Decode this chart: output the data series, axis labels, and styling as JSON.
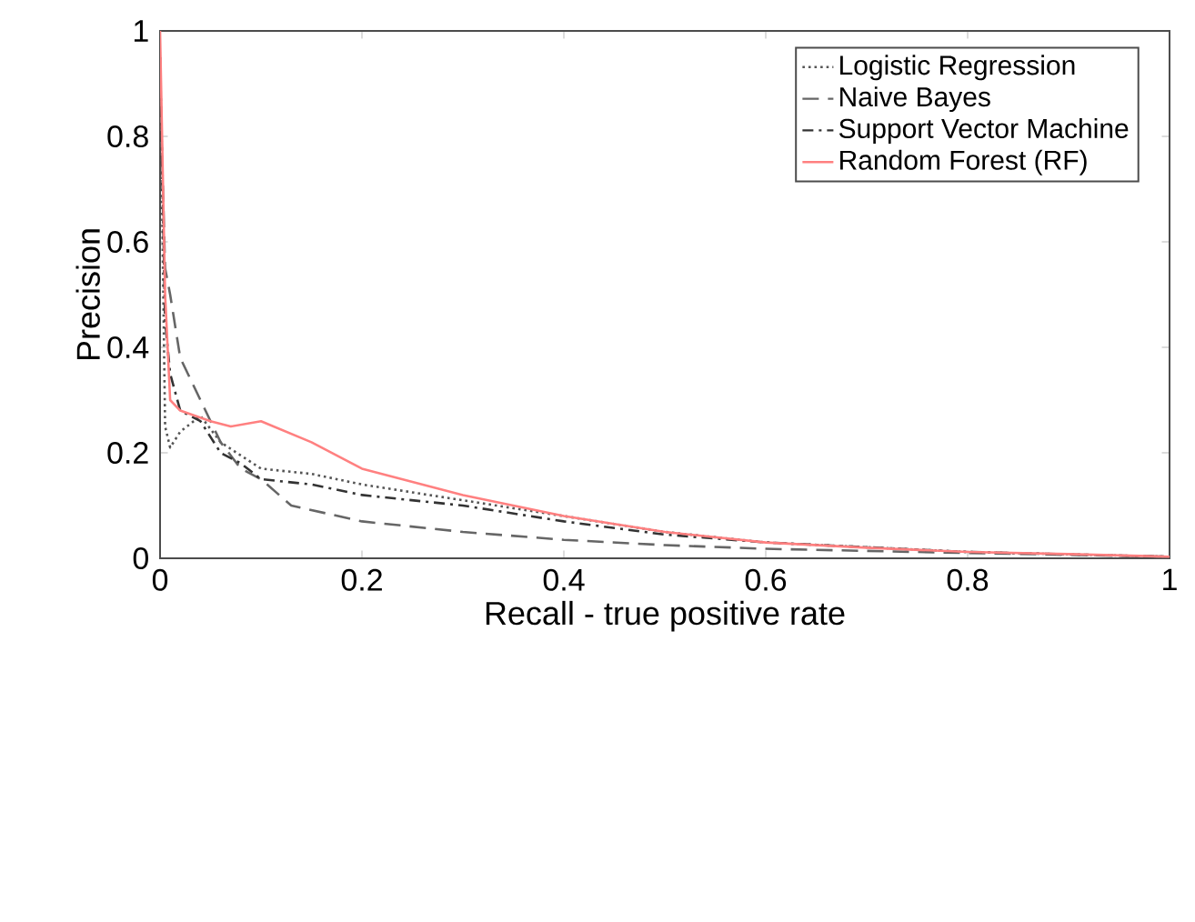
{
  "chart_data": {
    "type": "line",
    "xlabel": "Recall - true positive rate",
    "ylabel": "Precision",
    "xlim": [
      0,
      1
    ],
    "ylim": [
      0,
      1
    ],
    "xticks": [
      0,
      0.2,
      0.4,
      0.6,
      0.8,
      1
    ],
    "yticks": [
      0,
      0.2,
      0.4,
      0.6,
      0.8,
      1
    ],
    "grid": false,
    "legend": "top right",
    "series": [
      {
        "name": "Logistic Regression",
        "color": "#555555",
        "line_style": "dotted",
        "x": [
          0,
          0.005,
          0.01,
          0.02,
          0.04,
          0.06,
          0.1,
          0.15,
          0.2,
          0.3,
          0.4,
          0.5,
          0.6,
          0.8,
          1
        ],
        "values": [
          0.95,
          0.25,
          0.21,
          0.24,
          0.27,
          0.22,
          0.17,
          0.16,
          0.14,
          0.11,
          0.08,
          0.05,
          0.03,
          0.012,
          0.003
        ]
      },
      {
        "name": "Naive Bayes",
        "color": "#666666",
        "line_style": "dashed",
        "x": [
          0,
          0.005,
          0.01,
          0.02,
          0.04,
          0.06,
          0.08,
          0.1,
          0.13,
          0.2,
          0.3,
          0.4,
          0.5,
          0.6,
          0.8,
          1
        ],
        "values": [
          0.9,
          0.55,
          0.5,
          0.38,
          0.3,
          0.22,
          0.17,
          0.15,
          0.1,
          0.07,
          0.05,
          0.035,
          0.025,
          0.018,
          0.01,
          0.003
        ]
      },
      {
        "name": "Support Vector Machine",
        "color": "#333333",
        "line_style": "dashdotted",
        "x": [
          0,
          0.005,
          0.01,
          0.02,
          0.04,
          0.06,
          0.08,
          0.1,
          0.15,
          0.2,
          0.3,
          0.4,
          0.5,
          0.6,
          0.8,
          1
        ],
        "values": [
          0.95,
          0.45,
          0.35,
          0.28,
          0.26,
          0.2,
          0.18,
          0.15,
          0.14,
          0.12,
          0.1,
          0.07,
          0.045,
          0.03,
          0.012,
          0.003
        ]
      },
      {
        "name": "Random Forest (RF)",
        "color": "#ff8080",
        "line_style": "solid",
        "x": [
          0,
          0.005,
          0.01,
          0.02,
          0.05,
          0.07,
          0.1,
          0.15,
          0.2,
          0.3,
          0.4,
          0.5,
          0.6,
          0.7,
          0.8,
          0.9,
          1
        ],
        "values": [
          1.0,
          0.5,
          0.3,
          0.28,
          0.26,
          0.25,
          0.26,
          0.22,
          0.17,
          0.12,
          0.08,
          0.05,
          0.03,
          0.02,
          0.012,
          0.008,
          0.003
        ]
      }
    ]
  }
}
